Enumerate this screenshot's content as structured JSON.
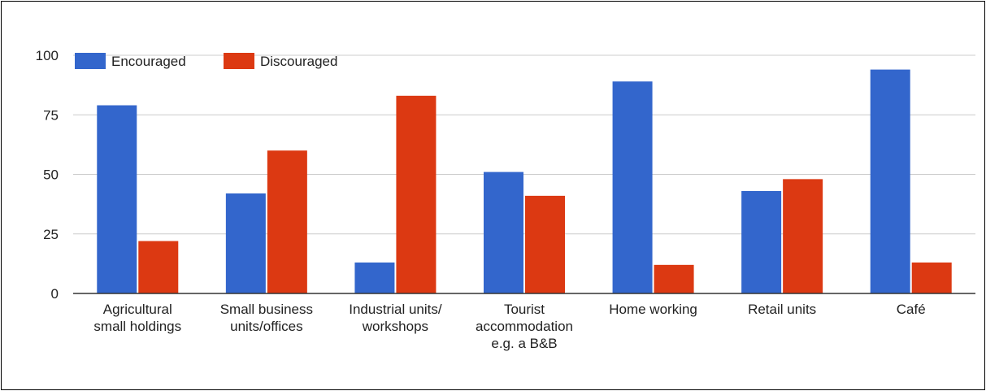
{
  "chart_data": {
    "type": "bar",
    "title": "",
    "xlabel": "",
    "ylabel": "",
    "ylim": [
      0,
      100
    ],
    "yticks": [
      0,
      25,
      50,
      75,
      100
    ],
    "grid": true,
    "legend_position": "top-left",
    "categories": [
      [
        "Agricultural",
        "small holdings"
      ],
      [
        "Small business",
        "units/offices"
      ],
      [
        "Industrial units/",
        "workshops"
      ],
      [
        "Tourist",
        "accommodation",
        "e.g. a B&B"
      ],
      [
        "Home working"
      ],
      [
        "Retail units"
      ],
      [
        "Café"
      ]
    ],
    "series": [
      {
        "name": "Encouraged",
        "color": "#3366cc",
        "values": [
          79,
          42,
          13,
          51,
          89,
          43,
          94
        ]
      },
      {
        "name": "Discouraged",
        "color": "#dc3912",
        "values": [
          22,
          60,
          83,
          41,
          12,
          48,
          13
        ]
      }
    ]
  }
}
